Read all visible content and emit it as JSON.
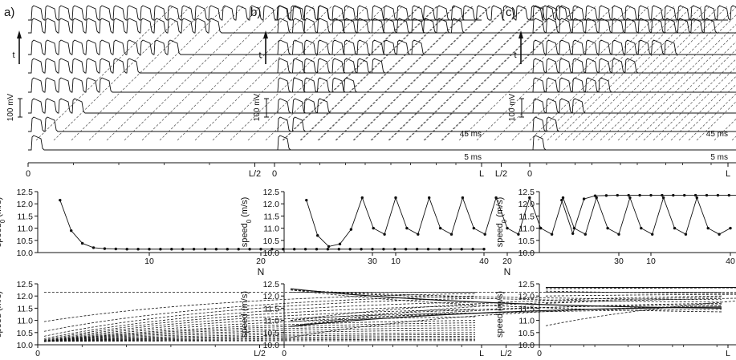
{
  "figure": {
    "panels": [
      {
        "letter": "a)"
      },
      {
        "letter": "b)"
      },
      {
        "letter": "c)"
      }
    ],
    "common": {
      "time_arrow_label": "t",
      "scale_bar_label": "100 mV",
      "time_label_1": "45 ms",
      "time_label_0": "5 ms",
      "x_tick_labels": [
        "0",
        "L/2",
        "L"
      ],
      "speed0_ylabel_main": "speed",
      "speed0_ylabel_sub": "0",
      "speed0_ylabel_unit": " (m/s)",
      "speed_ylabel": "speed (m/s)",
      "n_xlabel": "N"
    }
  },
  "chart_data": [
    {
      "panel": "a)",
      "type": "line",
      "title": "",
      "xlabel": "N",
      "ylabel": "speed0 (m/s)",
      "xlim": [
        0,
        40
      ],
      "ylim": [
        10.0,
        12.5
      ],
      "x_ticks": [
        10,
        20,
        30,
        40
      ],
      "y_ticks": [
        10.0,
        10.5,
        11.0,
        11.5,
        12.0,
        12.5
      ],
      "series": [
        {
          "x": [
            2,
            3,
            4,
            5,
            6,
            7,
            8,
            9,
            10,
            11,
            12,
            13,
            14,
            15,
            16,
            17,
            18,
            19,
            20,
            21,
            22,
            23,
            24,
            25,
            26,
            27,
            28,
            29,
            30,
            31,
            32,
            33,
            34,
            35,
            36,
            37,
            38,
            39,
            40
          ],
          "values": [
            12.15,
            10.9,
            10.38,
            10.2,
            10.16,
            10.15,
            10.14,
            10.14,
            10.14,
            10.14,
            10.14,
            10.14,
            10.14,
            10.14,
            10.14,
            10.14,
            10.14,
            10.14,
            10.14,
            10.14,
            10.14,
            10.14,
            10.14,
            10.14,
            10.14,
            10.14,
            10.14,
            10.14,
            10.14,
            10.14,
            10.14,
            10.14,
            10.14,
            10.14,
            10.14,
            10.14,
            10.14,
            10.14,
            10.14
          ]
        }
      ]
    },
    {
      "panel": "b)",
      "type": "line",
      "title": "",
      "xlabel": "N",
      "ylabel": "speed0 (m/s)",
      "xlim": [
        0,
        40
      ],
      "ylim": [
        10.0,
        12.5
      ],
      "x_ticks": [
        10,
        20,
        30,
        40
      ],
      "y_ticks": [
        10.0,
        10.5,
        11.0,
        11.5,
        12.0,
        12.5
      ],
      "series": [
        {
          "x": [
            2,
            3,
            4,
            5,
            6,
            7,
            8,
            9,
            10,
            11,
            12,
            13,
            14,
            15,
            16,
            17,
            18,
            19,
            20,
            21,
            22,
            23,
            24,
            25,
            26,
            27,
            28,
            29,
            30,
            31,
            32,
            33,
            34,
            35,
            36,
            37,
            38,
            39,
            40
          ],
          "values": [
            12.15,
            10.7,
            10.25,
            10.35,
            10.95,
            12.25,
            11.0,
            10.75,
            12.25,
            11.0,
            10.75,
            12.25,
            11.0,
            10.75,
            12.25,
            11.0,
            10.75,
            12.25,
            11.0,
            10.75,
            12.25,
            11.0,
            10.75,
            12.25,
            11.0,
            10.75,
            12.25,
            11.0,
            10.75,
            12.25,
            11.0,
            10.75,
            12.25,
            11.0,
            10.75,
            12.25,
            11.0,
            10.75,
            11.0
          ]
        }
      ]
    },
    {
      "panel": "c)",
      "type": "line",
      "title": "",
      "xlabel": "N",
      "ylabel": "speed0 (m/s)",
      "xlim": [
        0,
        40
      ],
      "ylim": [
        10.0,
        12.5
      ],
      "x_ticks": [
        10,
        20,
        30,
        40
      ],
      "y_ticks": [
        10.0,
        10.5,
        11.0,
        11.5,
        12.0,
        12.5
      ],
      "series": [
        {
          "x": [
            2,
            3,
            4,
            5,
            6,
            7,
            8,
            9,
            10,
            11,
            12,
            13,
            14,
            15,
            16,
            17,
            18,
            19,
            20,
            21,
            22,
            23,
            24,
            25,
            26,
            27,
            28,
            29,
            30,
            31,
            32,
            33,
            34,
            35,
            36,
            37,
            38,
            39,
            40
          ],
          "values": [
            12.15,
            10.78,
            12.2,
            12.33,
            12.34,
            12.35,
            12.35,
            12.35,
            12.35,
            12.35,
            12.35,
            12.35,
            12.35,
            12.35,
            12.35,
            12.35,
            12.35,
            12.35,
            12.35,
            12.35,
            12.35,
            12.35,
            12.35,
            12.35,
            12.35,
            12.35,
            12.35,
            12.35,
            12.35,
            12.35,
            12.35,
            12.35,
            12.35,
            12.35,
            12.35,
            12.35,
            12.35,
            12.35,
            12.35
          ]
        }
      ]
    },
    {
      "panel": "a)",
      "type": "line",
      "title": "",
      "xlabel": "",
      "ylabel": "speed (m/s)",
      "x_tick_labels": [
        "0",
        "L/2",
        "L"
      ],
      "ylim": [
        10.0,
        12.5
      ],
      "y_ticks": [
        10.0,
        10.5,
        11.0,
        11.5,
        12.0,
        12.5
      ],
      "series": [
        {
          "start": 12.15,
          "end": 12.15
        },
        {
          "start": 10.95,
          "end": 12.1
        },
        {
          "start": 10.55,
          "end": 12.0
        },
        {
          "start": 10.35,
          "end": 11.9
        },
        {
          "start": 10.25,
          "end": 11.75
        },
        {
          "start": 10.2,
          "end": 11.6
        },
        {
          "start": 10.17,
          "end": 11.45
        },
        {
          "start": 10.15,
          "end": 11.3
        },
        {
          "start": 10.14,
          "end": 11.15
        },
        {
          "start": 10.14,
          "end": 11.0
        },
        {
          "start": 10.14,
          "end": 10.9
        },
        {
          "start": 10.14,
          "end": 10.8
        },
        {
          "start": 10.14,
          "end": 10.7
        },
        {
          "start": 10.14,
          "end": 10.6
        },
        {
          "start": 10.14,
          "end": 10.5
        },
        {
          "start": 10.14,
          "end": 10.42
        },
        {
          "start": 10.14,
          "end": 10.35
        },
        {
          "start": 10.14,
          "end": 10.28
        },
        {
          "start": 10.14,
          "end": 10.22
        },
        {
          "start": 10.14,
          "end": 10.17
        }
      ]
    },
    {
      "panel": "b)",
      "type": "line",
      "title": "",
      "xlabel": "",
      "ylabel": "speed (m/s)",
      "x_tick_labels": [
        "0",
        "L/2",
        "L"
      ],
      "ylim": [
        10.0,
        12.5
      ],
      "y_ticks": [
        10.0,
        10.5,
        11.0,
        11.5,
        12.0,
        12.5
      ],
      "series": [
        {
          "start": 12.15,
          "end": 12.15
        },
        {
          "start": 12.3,
          "end": 11.5
        },
        {
          "start": 10.75,
          "end": 11.55
        },
        {
          "start": 10.3,
          "end": 11.6
        },
        {
          "start": 10.95,
          "end": 11.45
        },
        {
          "start": 12.25,
          "end": 11.35
        },
        {
          "start": 11.0,
          "end": 11.65
        },
        {
          "start": 10.75,
          "end": 11.7
        },
        {
          "start": 12.25,
          "end": 11.75
        },
        {
          "start": 11.0,
          "end": 12.0
        },
        {
          "start": 10.75,
          "end": 11.95
        },
        {
          "start": 12.25,
          "end": 11.85
        }
      ]
    },
    {
      "panel": "c)",
      "type": "line",
      "title": "",
      "xlabel": "",
      "ylabel": "speed (m/s)",
      "x_tick_labels": [
        "0",
        "L/2",
        "L"
      ],
      "ylim": [
        10.0,
        12.5
      ],
      "y_ticks": [
        10.0,
        10.5,
        11.0,
        11.5,
        12.0,
        12.5
      ],
      "series": [
        {
          "start": 12.35,
          "end": 12.35
        },
        {
          "start": 12.3,
          "end": 12.35
        },
        {
          "start": 12.2,
          "end": 12.05
        },
        {
          "start": 12.15,
          "end": 12.15
        },
        {
          "start": 12.0,
          "end": 12.1
        },
        {
          "start": 11.7,
          "end": 12.0
        },
        {
          "start": 10.78,
          "end": 12.25
        }
      ]
    }
  ]
}
